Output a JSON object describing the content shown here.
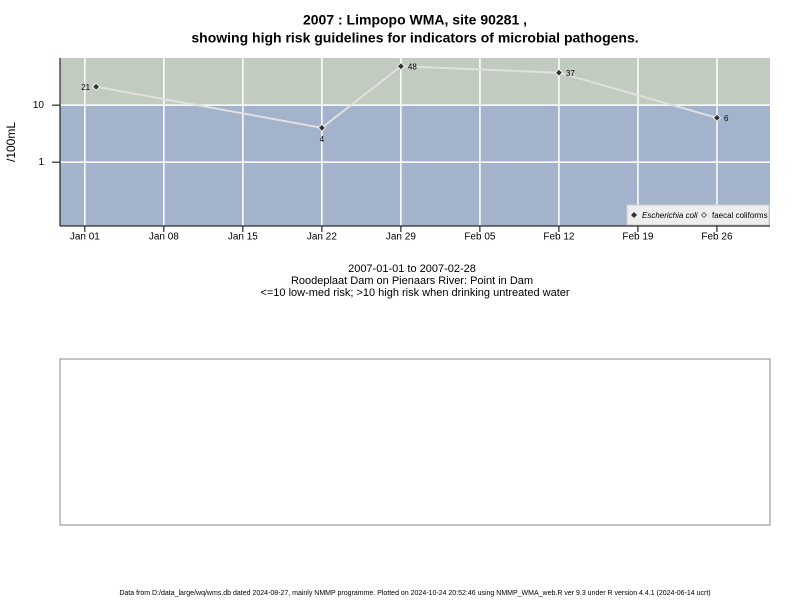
{
  "chart_data": {
    "type": "line",
    "title": [
      "2007 : Limpopo WMA, site 90281 ,",
      "showing high risk guidelines for indicators of microbial pathogens."
    ],
    "y_label": "/100mL",
    "x": [
      2,
      22,
      29,
      43,
      57
    ],
    "series": [
      {
        "name": "Escherichia coli",
        "color": "#e0e0e0",
        "marker_color": "#333333",
        "values": [
          21,
          4,
          48,
          37,
          6
        ]
      },
      {
        "name": "faecal coliforms",
        "color": "#ffffff",
        "marker_color": "#ffffff",
        "values": [
          null,
          null,
          null,
          null,
          null
        ]
      }
    ],
    "xlim": [
      -1.2,
      61.7
    ],
    "xticks": [
      {
        "value": 1,
        "label": "Jan 01"
      },
      {
        "value": 8,
        "label": "Jan 08"
      },
      {
        "value": 15,
        "label": "Jan 15"
      },
      {
        "value": 22,
        "label": "Jan 22"
      },
      {
        "value": 29,
        "label": "Jan 29"
      },
      {
        "value": 36,
        "label": "Feb 05"
      },
      {
        "value": 43,
        "label": "Feb 12"
      },
      {
        "value": 50,
        "label": "Feb 19"
      },
      {
        "value": 57,
        "label": "Feb 26"
      }
    ],
    "ylim": [
      0.076,
      67
    ],
    "yticks": [
      1,
      10
    ],
    "log_y": true,
    "grid": true,
    "risk_threshold": 10,
    "high_risk_color": "#c2cbbf",
    "low_risk_color": "#a3b3cb",
    "legend": "bottom-right",
    "notes": [
      "2007-01-01 to 2007-02-28",
      "Roodeplaat Dam on Pienaars River: Point in Dam",
      "<=10 low-med risk; >10 high risk when drinking untreated water"
    ],
    "footer": "Data from D:/data_large/wq/wms.db dated 2024-08-27, mainly NMMP programme. Plotted on 2024-10-24 20:52:46 using NMMP_WMA_web.R ver 9.3 under R version 4.4.1 (2024-06-14 ucrt)"
  }
}
